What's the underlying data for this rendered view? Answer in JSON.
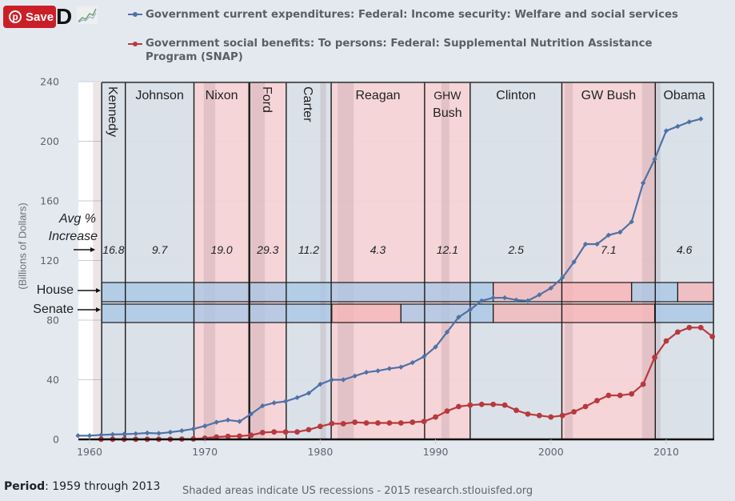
{
  "toolbar": {
    "save_label": "Save",
    "pin_icon": "pinterest-icon",
    "d_logo": "D",
    "d_logo_icon": "d-logo-icon",
    "spark_icon": "sparkline-icon"
  },
  "footer": {
    "period_label": "Period",
    "period_value": ": 1959 through 2013",
    "note": "Shaded areas indicate US recessions - 2015 research.stlouisfed.org"
  },
  "colors": {
    "welfare": "#4f72a6",
    "snap": "#b8393d",
    "dem_fill": "#d8dfe7",
    "rep_fill": "#f4d2d5",
    "recession": "rgba(150,110,120,0.18)",
    "house_dem": "#a9c6e6",
    "house_rep": "#f5b6b8",
    "background": "#e4e9f0"
  },
  "chart_data": {
    "type": "line",
    "title": "",
    "xlabel": "",
    "ylabel": "(Billions of Dollars)",
    "xlim": [
      1958.9,
      2014.3
    ],
    "ylim": [
      0,
      240
    ],
    "yticks": [
      0,
      40,
      80,
      120,
      160,
      200,
      240
    ],
    "xticks": [
      1960,
      1970,
      1980,
      1990,
      2000,
      2010
    ],
    "grid": true,
    "legend": "top",
    "series": [
      {
        "name": "Government current expenditures: Federal: Income security: Welfare and social services",
        "color_key": "welfare",
        "x": [
          1959,
          1960,
          1961,
          1962,
          1963,
          1964,
          1965,
          1966,
          1967,
          1968,
          1969,
          1970,
          1971,
          1972,
          1973,
          1974,
          1975,
          1976,
          1977,
          1978,
          1979,
          1980,
          1981,
          1982,
          1983,
          1984,
          1985,
          1986,
          1987,
          1988,
          1989,
          1990,
          1991,
          1992,
          1993,
          1994,
          1995,
          1996,
          1997,
          1998,
          1999,
          2000,
          2001,
          2002,
          2003,
          2004,
          2005,
          2006,
          2007,
          2008,
          2009,
          2010,
          2011,
          2012,
          2013
        ],
        "values": [
          2.5,
          2.5,
          3.0,
          3.3,
          3.5,
          3.8,
          4.3,
          4.0,
          4.8,
          5.8,
          7.0,
          9.0,
          11.5,
          13.0,
          12.0,
          17.0,
          22.5,
          24.5,
          25.5,
          28.0,
          31.0,
          37.0,
          40.0,
          40.0,
          42.5,
          45.0,
          46.0,
          47.5,
          48.5,
          51.5,
          55.5,
          62.0,
          72.0,
          82.0,
          87.0,
          93.0,
          95.0,
          95.0,
          93.5,
          93.0,
          97.0,
          101.5,
          108.5,
          119.0,
          131.0,
          131.0,
          137.0,
          139.0,
          146.0,
          172.0,
          188.0,
          207.0,
          210.0,
          213.0,
          215.0
        ]
      },
      {
        "name": "Government social benefits: To persons: Federal: Supplemental Nutrition Assistance Program (SNAP)",
        "color_key": "snap",
        "x": [
          1961,
          1962,
          1963,
          1964,
          1965,
          1966,
          1967,
          1968,
          1969,
          1970,
          1971,
          1972,
          1973,
          1974,
          1975,
          1976,
          1977,
          1978,
          1979,
          1980,
          1981,
          1982,
          1983,
          1984,
          1985,
          1986,
          1987,
          1988,
          1989,
          1990,
          1991,
          1992,
          1993,
          1994,
          1995,
          1996,
          1997,
          1998,
          1999,
          2000,
          2001,
          2002,
          2003,
          2004,
          2005,
          2006,
          2007,
          2008,
          2009,
          2010,
          2011,
          2012,
          2013,
          2014
        ],
        "values": [
          0.1,
          0.1,
          0.1,
          0.1,
          0.1,
          0.1,
          0.1,
          0.2,
          0.3,
          0.8,
          1.6,
          2.0,
          2.2,
          2.8,
          4.6,
          5.0,
          5.0,
          5.0,
          6.5,
          8.7,
          10.6,
          10.5,
          11.5,
          11.0,
          11.0,
          11.0,
          11.0,
          11.5,
          12.0,
          15.0,
          19.0,
          22.0,
          23.0,
          23.5,
          23.5,
          23.0,
          19.5,
          17.0,
          16.0,
          15.0,
          16.0,
          18.5,
          22.0,
          26.0,
          29.5,
          29.5,
          30.5,
          37.0,
          55.0,
          66.0,
          72.0,
          75.0,
          75.0,
          69.0
        ]
      }
    ],
    "presidents": [
      {
        "name": "Kennedy",
        "start": 1961.05,
        "end": 1963.1,
        "party": "D",
        "avg_increase": "16.8",
        "vertical": true
      },
      {
        "name": "Johnson",
        "start": 1963.1,
        "end": 1969.05,
        "party": "D",
        "avg_increase": "9.7"
      },
      {
        "name": "Nixon",
        "start": 1969.05,
        "end": 1973.85,
        "party": "R",
        "avg_increase": "19.0"
      },
      {
        "name": "Ford",
        "start": 1973.85,
        "end": 1977.05,
        "party": "R",
        "avg_increase": "29.3",
        "vertical": true
      },
      {
        "name": "Carter",
        "start": 1977.05,
        "end": 1980.95,
        "party": "D",
        "avg_increase": "11.2",
        "vertical": true
      },
      {
        "name": "Reagan",
        "start": 1980.95,
        "end": 1989.05,
        "party": "R",
        "avg_increase": "4.3"
      },
      {
        "name": "GHW Bush",
        "lines": [
          "GHW",
          "Bush"
        ],
        "start": 1989.05,
        "end": 1993.0,
        "party": "R",
        "avg_increase": "12.1"
      },
      {
        "name": "Clinton",
        "start": 1993.0,
        "end": 2000.95,
        "party": "D",
        "avg_increase": "2.5"
      },
      {
        "name": "GW Bush",
        "start": 2000.95,
        "end": 2009.05,
        "party": "R",
        "avg_increase": "7.1"
      },
      {
        "name": "Obama",
        "start": 2009.05,
        "end": 2014.1,
        "party": "D",
        "avg_increase": "4.6"
      }
    ],
    "recessions": [
      [
        1960.3,
        1961.1
      ],
      [
        1969.9,
        1970.9
      ],
      [
        1973.9,
        1975.2
      ],
      [
        1980.0,
        1980.5
      ],
      [
        1981.5,
        1982.9
      ],
      [
        1990.5,
        1991.2
      ],
      [
        2001.2,
        2001.9
      ],
      [
        2007.9,
        2009.5
      ]
    ],
    "house_control": [
      {
        "start": 1961.05,
        "end": 1995.0,
        "party": "D"
      },
      {
        "start": 1995.0,
        "end": 2007.0,
        "party": "R"
      },
      {
        "start": 2007.0,
        "end": 2011.0,
        "party": "D"
      },
      {
        "start": 2011.0,
        "end": 2014.1,
        "party": "R"
      }
    ],
    "senate_control": [
      {
        "start": 1961.05,
        "end": 1981.0,
        "party": "D"
      },
      {
        "start": 1981.0,
        "end": 1987.0,
        "party": "R"
      },
      {
        "start": 1987.0,
        "end": 1995.0,
        "party": "D"
      },
      {
        "start": 1995.0,
        "end": 2009.0,
        "party": "R"
      },
      {
        "start": 2009.0,
        "end": 2014.1,
        "party": "D"
      }
    ],
    "annotations": {
      "avg_line1": "Avg %",
      "avg_line2": "Increase",
      "house": "House",
      "senate": "Senate"
    }
  }
}
